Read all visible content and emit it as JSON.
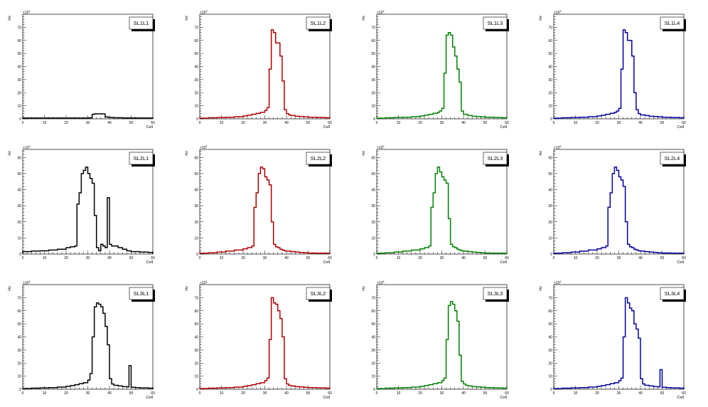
{
  "chart_data": [
    {
      "type": "bar",
      "title": "SL1L1",
      "xlabel": "Cell",
      "ylabel": "Hz",
      "exponent_label": "10",
      "exponent_power": "3",
      "xlim": [
        0,
        60
      ],
      "ylim": [
        0,
        80
      ],
      "xticks": [
        0,
        10,
        20,
        30,
        40,
        50,
        60
      ],
      "yticks": [
        0,
        10,
        20,
        30,
        40,
        50,
        60,
        70
      ],
      "line_color": "#000000",
      "x": [
        0,
        2,
        4,
        6,
        8,
        10,
        12,
        14,
        16,
        18,
        20,
        22,
        24,
        26,
        28,
        30,
        31,
        32,
        33,
        34,
        35,
        36,
        37,
        38,
        39,
        40,
        42,
        44,
        46,
        48,
        50,
        52,
        54,
        56,
        58
      ],
      "values": [
        0.6,
        0.6,
        0.6,
        0.6,
        0.6,
        0.6,
        0.6,
        0.6,
        0.6,
        0.6,
        0.6,
        0.6,
        0.6,
        0.6,
        0.6,
        0.7,
        0.8,
        3.5,
        3.8,
        3.8,
        3.8,
        3.8,
        3.8,
        1.5,
        1.2,
        1,
        0.8,
        0.8,
        0.7,
        0.7,
        0.7,
        0.6,
        0.6,
        0.6,
        0.6
      ]
    },
    {
      "type": "bar",
      "title": "SL1L2",
      "xlabel": "Cell",
      "ylabel": "Hz",
      "exponent_label": "10",
      "exponent_power": "3",
      "xlim": [
        0,
        60
      ],
      "ylim": [
        0,
        80
      ],
      "xticks": [
        0,
        10,
        20,
        30,
        40,
        50,
        60
      ],
      "yticks": [
        0,
        10,
        20,
        30,
        40,
        50,
        60,
        70
      ],
      "line_color": "#b00000",
      "x": [
        0,
        4,
        8,
        12,
        16,
        20,
        22,
        24,
        26,
        28,
        30,
        31,
        32,
        33,
        34,
        35,
        36,
        37,
        38,
        39,
        40,
        41,
        42,
        44,
        46,
        48,
        50,
        54,
        58
      ],
      "values": [
        0.5,
        0.8,
        1.0,
        1.2,
        1.6,
        2.2,
        2.8,
        3.5,
        4.2,
        5.0,
        6.5,
        8.5,
        38,
        68,
        66,
        58,
        58,
        48,
        29,
        7,
        4,
        3,
        2.5,
        2,
        1.8,
        1.5,
        1.2,
        1.0,
        0.8
      ]
    },
    {
      "type": "bar",
      "title": "SL1L3",
      "xlabel": "Cell",
      "ylabel": "Hz",
      "exponent_label": "10",
      "exponent_power": "3",
      "xlim": [
        0,
        60
      ],
      "ylim": [
        0,
        80
      ],
      "xticks": [
        0,
        10,
        20,
        30,
        40,
        50,
        60
      ],
      "yticks": [
        0,
        10,
        20,
        30,
        40,
        50,
        60,
        70
      ],
      "line_color": "#008000",
      "x": [
        0,
        4,
        8,
        12,
        16,
        20,
        22,
        24,
        26,
        28,
        29,
        30,
        31,
        32,
        33,
        34,
        35,
        36,
        37,
        38,
        39,
        40,
        42,
        44,
        46,
        48,
        50,
        54,
        58
      ],
      "values": [
        0.5,
        0.8,
        1.0,
        1.2,
        1.6,
        2.2,
        2.8,
        3.5,
        4.2,
        5.0,
        6.0,
        8.0,
        35,
        64,
        66,
        64,
        55,
        48,
        38,
        28,
        6,
        3.5,
        2.5,
        2,
        1.8,
        1.5,
        1.2,
        1.0,
        0.8
      ]
    },
    {
      "type": "bar",
      "title": "SL1L4",
      "xlabel": "Cell",
      "ylabel": "Hz",
      "exponent_label": "10",
      "exponent_power": "3",
      "xlim": [
        0,
        60
      ],
      "ylim": [
        0,
        80
      ],
      "xticks": [
        0,
        10,
        20,
        30,
        40,
        50,
        60
      ],
      "yticks": [
        0,
        10,
        20,
        30,
        40,
        50,
        60,
        70
      ],
      "line_color": "#0000a0",
      "x": [
        0,
        4,
        8,
        12,
        16,
        20,
        22,
        24,
        26,
        28,
        29,
        30,
        31,
        32,
        33,
        34,
        35,
        36,
        37,
        38,
        39,
        40,
        42,
        44,
        46,
        48,
        50,
        54,
        58
      ],
      "values": [
        0.5,
        0.8,
        1.0,
        1.2,
        1.6,
        2.2,
        2.8,
        3.5,
        4.2,
        5.0,
        6.0,
        8.0,
        38,
        68,
        66,
        60,
        60,
        48,
        20,
        7,
        4,
        3,
        2.5,
        2,
        1.8,
        1.5,
        1.2,
        1.0,
        0.8
      ]
    },
    {
      "type": "bar",
      "title": "SL2L1",
      "xlabel": "Cell",
      "ylabel": "Hz",
      "exponent_label": "10",
      "exponent_power": "3",
      "xlim": [
        0,
        60
      ],
      "ylim": [
        0,
        65
      ],
      "xticks": [
        0,
        10,
        20,
        30,
        40,
        50,
        60
      ],
      "yticks": [
        0,
        10,
        20,
        30,
        40,
        50,
        60
      ],
      "line_color": "#000000",
      "x": [
        0,
        4,
        8,
        12,
        16,
        20,
        22,
        24,
        25,
        26,
        27,
        28,
        29,
        30,
        31,
        32,
        33,
        34,
        35,
        36,
        37,
        38,
        39,
        40,
        41,
        42,
        44,
        46,
        48,
        50,
        54,
        58
      ],
      "values": [
        1.5,
        1.8,
        2.0,
        2.5,
        3.0,
        4.0,
        4.5,
        5.0,
        31,
        38,
        50,
        52,
        54,
        50,
        47,
        44,
        24,
        4,
        2,
        6,
        5,
        4,
        35,
        6,
        5,
        5,
        4,
        3,
        2,
        1.5,
        1.2,
        1.0
      ]
    },
    {
      "type": "bar",
      "title": "SL2L2",
      "xlabel": "Cell",
      "ylabel": "Hz",
      "exponent_label": "10",
      "exponent_power": "3",
      "xlim": [
        0,
        60
      ],
      "ylim": [
        0,
        65
      ],
      "xticks": [
        0,
        10,
        20,
        30,
        40,
        50,
        60
      ],
      "yticks": [
        0,
        10,
        20,
        30,
        40,
        50,
        60
      ],
      "line_color": "#b00000",
      "x": [
        0,
        4,
        8,
        12,
        16,
        20,
        22,
        24,
        25,
        26,
        27,
        28,
        29,
        30,
        31,
        32,
        33,
        34,
        35,
        36,
        37,
        38,
        39,
        40,
        42,
        44,
        46,
        48,
        50,
        54,
        58
      ],
      "values": [
        0.5,
        0.8,
        1.2,
        1.8,
        2.5,
        3.2,
        4,
        5,
        29,
        38,
        50,
        54,
        53,
        48,
        46,
        43,
        20,
        6,
        4.5,
        4,
        3,
        2.5,
        2,
        1.8,
        1.5,
        1.2,
        1.0,
        0.8,
        0.6,
        0.5,
        0.5
      ]
    },
    {
      "type": "bar",
      "title": "SL2L3",
      "xlabel": "Cell",
      "ylabel": "Hz",
      "exponent_label": "10",
      "exponent_power": "3",
      "xlim": [
        0,
        60
      ],
      "ylim": [
        0,
        65
      ],
      "xticks": [
        0,
        10,
        20,
        30,
        40,
        50,
        60
      ],
      "yticks": [
        0,
        10,
        20,
        30,
        40,
        50,
        60
      ],
      "line_color": "#008000",
      "x": [
        0,
        4,
        8,
        12,
        16,
        20,
        22,
        24,
        25,
        26,
        27,
        28,
        29,
        30,
        31,
        32,
        33,
        34,
        35,
        36,
        37,
        38,
        39,
        40,
        42,
        44,
        46,
        48,
        50,
        54,
        58
      ],
      "values": [
        0.5,
        0.8,
        1.2,
        1.8,
        2.5,
        3.2,
        4,
        5,
        29,
        38,
        50,
        54,
        51,
        48,
        46,
        44,
        22,
        6,
        4.5,
        4,
        3,
        2.5,
        2,
        1.8,
        1.5,
        1.2,
        1.0,
        0.8,
        0.6,
        0.5,
        0.5
      ]
    },
    {
      "type": "bar",
      "title": "SL2L4",
      "xlabel": "Cell",
      "ylabel": "Hz",
      "exponent_label": "10",
      "exponent_power": "3",
      "xlim": [
        0,
        60
      ],
      "ylim": [
        0,
        65
      ],
      "xticks": [
        0,
        10,
        20,
        30,
        40,
        50,
        60
      ],
      "yticks": [
        0,
        10,
        20,
        30,
        40,
        50,
        60
      ],
      "line_color": "#0000a0",
      "x": [
        0,
        4,
        8,
        12,
        16,
        20,
        22,
        24,
        25,
        26,
        27,
        28,
        29,
        30,
        31,
        32,
        33,
        34,
        35,
        36,
        37,
        38,
        39,
        40,
        42,
        44,
        46,
        48,
        50,
        54,
        58
      ],
      "values": [
        0.5,
        0.8,
        1.2,
        1.8,
        2.5,
        3.2,
        4,
        5,
        29,
        38,
        50,
        54,
        52,
        48,
        46,
        42,
        20,
        6,
        4.5,
        4,
        3,
        2.5,
        2,
        1.8,
        1.5,
        1.2,
        1.0,
        0.8,
        0.6,
        0.5,
        0.5
      ]
    },
    {
      "type": "bar",
      "title": "SL3L1",
      "xlabel": "Cell",
      "ylabel": "Hz",
      "exponent_label": "10",
      "exponent_power": "3",
      "xlim": [
        0,
        60
      ],
      "ylim": [
        0,
        80
      ],
      "xticks": [
        0,
        10,
        20,
        30,
        40,
        50,
        60
      ],
      "yticks": [
        0,
        10,
        20,
        30,
        40,
        50,
        60,
        70
      ],
      "line_color": "#000000",
      "x": [
        0,
        4,
        8,
        12,
        16,
        20,
        22,
        24,
        26,
        28,
        30,
        31,
        32,
        33,
        34,
        35,
        36,
        37,
        38,
        39,
        40,
        41,
        42,
        44,
        46,
        48,
        49,
        50,
        52,
        54,
        58
      ],
      "values": [
        0.5,
        0.8,
        1.0,
        1.2,
        1.6,
        2.2,
        2.8,
        3.5,
        4.2,
        5.0,
        7.0,
        12,
        40,
        63,
        66,
        65,
        63,
        58,
        48,
        34,
        8,
        4,
        3,
        2.5,
        2,
        1.8,
        18,
        1.5,
        1.2,
        1.0,
        0.8
      ]
    },
    {
      "type": "bar",
      "title": "SL3L2",
      "xlabel": "Cell",
      "ylabel": "Hz",
      "exponent_label": "10",
      "exponent_power": "3",
      "xlim": [
        0,
        60
      ],
      "ylim": [
        0,
        80
      ],
      "xticks": [
        0,
        10,
        20,
        30,
        40,
        50,
        60
      ],
      "yticks": [
        0,
        10,
        20,
        30,
        40,
        50,
        60,
        70
      ],
      "line_color": "#b00000",
      "x": [
        0,
        4,
        8,
        12,
        16,
        20,
        22,
        24,
        26,
        28,
        30,
        31,
        32,
        33,
        34,
        35,
        36,
        37,
        38,
        39,
        40,
        41,
        42,
        44,
        46,
        48,
        50,
        54,
        58
      ],
      "values": [
        0.5,
        0.8,
        1.0,
        1.2,
        1.6,
        2.2,
        2.8,
        3.5,
        4.2,
        5.0,
        6.5,
        8.5,
        38,
        70,
        66,
        65,
        60,
        54,
        40,
        8,
        4,
        3,
        2.5,
        2,
        1.8,
        1.5,
        1.2,
        1.0,
        0.8
      ]
    },
    {
      "type": "bar",
      "title": "SL3L3",
      "xlabel": "Cell",
      "ylabel": "Hz",
      "exponent_label": "10",
      "exponent_power": "3",
      "xlim": [
        0,
        60
      ],
      "ylim": [
        0,
        80
      ],
      "xticks": [
        0,
        10,
        20,
        30,
        40,
        50,
        60
      ],
      "yticks": [
        0,
        10,
        20,
        30,
        40,
        50,
        60,
        70
      ],
      "line_color": "#008000",
      "x": [
        0,
        4,
        8,
        12,
        16,
        20,
        22,
        24,
        26,
        28,
        30,
        31,
        32,
        33,
        34,
        35,
        36,
        37,
        38,
        39,
        40,
        41,
        42,
        44,
        46,
        48,
        50,
        54,
        58
      ],
      "values": [
        0.5,
        0.8,
        1.0,
        1.2,
        1.6,
        2.2,
        2.8,
        3.5,
        4.2,
        5.0,
        6.5,
        8.5,
        38,
        64,
        67,
        65,
        60,
        52,
        26,
        6,
        4,
        3,
        2.5,
        2,
        1.8,
        1.5,
        1.2,
        1.0,
        0.8
      ]
    },
    {
      "type": "bar",
      "title": "SL3L4",
      "xlabel": "Cell",
      "ylabel": "Hz",
      "exponent_label": "10",
      "exponent_power": "3",
      "xlim": [
        0,
        60
      ],
      "ylim": [
        0,
        80
      ],
      "xticks": [
        0,
        10,
        20,
        30,
        40,
        50,
        60
      ],
      "yticks": [
        0,
        10,
        20,
        30,
        40,
        50,
        60,
        70
      ],
      "line_color": "#0000a0",
      "x": [
        0,
        4,
        8,
        12,
        16,
        20,
        22,
        24,
        26,
        28,
        30,
        31,
        32,
        33,
        34,
        35,
        36,
        37,
        38,
        39,
        40,
        41,
        42,
        44,
        46,
        48,
        49,
        50,
        52,
        54,
        58
      ],
      "values": [
        0.5,
        0.8,
        1.0,
        1.2,
        1.6,
        2.2,
        2.8,
        3.5,
        4.2,
        5.0,
        6.5,
        8.5,
        40,
        70,
        66,
        62,
        60,
        50,
        46,
        39,
        8,
        4,
        3,
        2.5,
        2,
        1.8,
        15,
        1.5,
        1.2,
        1.0,
        0.8
      ]
    }
  ]
}
